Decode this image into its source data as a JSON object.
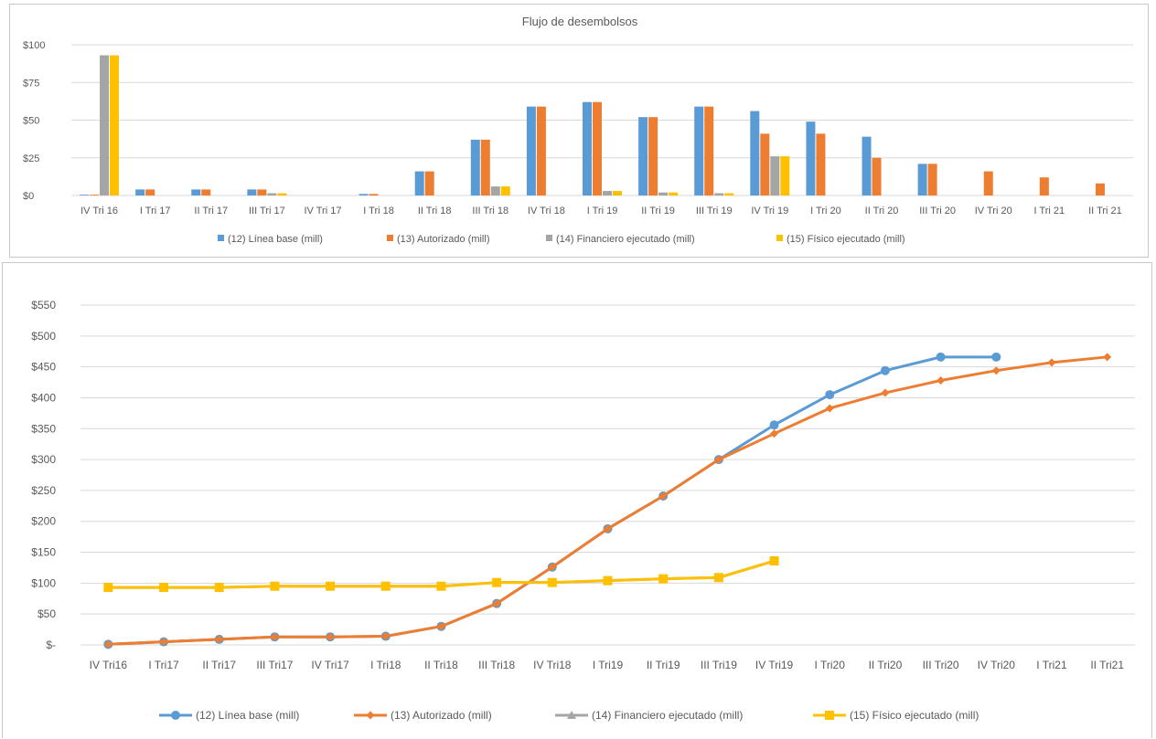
{
  "chart_data": [
    {
      "type": "bar",
      "title": "Flujo de desembolsos",
      "categories": [
        "IV Tri 16",
        "I Tri 17",
        "II Tri 17",
        "III Tri 17",
        "IV Tri 17",
        "I Tri 18",
        "II Tri 18",
        "III Tri 18",
        "IV Tri 18",
        "I Tri 19",
        "II Tri 19",
        "III Tri 19",
        "IV Tri 19",
        "I Tri 20",
        "II Tri 20",
        "III Tri 20",
        "IV Tri 20",
        "I Tri 21",
        "II Tri 21"
      ],
      "yticks": [
        "$0",
        "$25",
        "$50",
        "$75",
        "$100"
      ],
      "ylim": [
        0,
        100
      ],
      "grid": true,
      "legend_position": "bottom",
      "series": [
        {
          "name": "(12) Línea base (mill)",
          "color": "#5b9bd5",
          "values": [
            0.5,
            4,
            4,
            4,
            0,
            1,
            16,
            37,
            59,
            62,
            52,
            59,
            56,
            49,
            39,
            21,
            null,
            null,
            null
          ]
        },
        {
          "name": "(13) Autorizado (mill)",
          "color": "#ed7d31",
          "values": [
            0.5,
            4,
            4,
            4,
            0,
            1,
            16,
            37,
            59,
            62,
            52,
            59,
            41,
            41,
            25,
            21,
            16,
            12,
            8
          ]
        },
        {
          "name": "(14) Financiero ejecutado (mill)",
          "color": "#a5a5a5",
          "values": [
            93,
            0,
            0,
            1.5,
            0,
            0,
            0,
            6,
            0,
            3,
            2,
            1.5,
            26,
            null,
            null,
            null,
            null,
            null,
            null
          ]
        },
        {
          "name": "(15) Físico ejecutado (mill)",
          "color": "#ffc000",
          "values": [
            93,
            0,
            0,
            1.5,
            0,
            0,
            0,
            6,
            0,
            3,
            2,
            1.5,
            26,
            null,
            null,
            null,
            null,
            null,
            null
          ]
        }
      ]
    },
    {
      "type": "line",
      "title": "",
      "categories": [
        "IV Tri16",
        "I Tri17",
        "II Tri17",
        "III Tri17",
        "IV Tri17",
        "I Tri18",
        "II Tri18",
        "III Tri18",
        "IV Tri18",
        "I Tri19",
        "II Tri19",
        "III Tri19",
        "IV Tri19",
        "I Tri20",
        "II Tri20",
        "III Tri20",
        "IV Tri20",
        "I Tri21",
        "II Tri21"
      ],
      "yticks": [
        "$-",
        "$50",
        "$100",
        "$150",
        "$200",
        "$250",
        "$300",
        "$350",
        "$400",
        "$450",
        "$500",
        "$550"
      ],
      "ylim": [
        0,
        550
      ],
      "grid": true,
      "legend_position": "bottom",
      "series": [
        {
          "name": "(12) Línea base (mill)",
          "color": "#5b9bd5",
          "marker": "circle",
          "values": [
            1,
            5,
            9,
            13,
            13,
            14,
            30,
            67,
            126,
            188,
            241,
            300,
            356,
            405,
            444,
            466,
            466,
            null,
            null
          ]
        },
        {
          "name": "(13) Autorizado (mill)",
          "color": "#ed7d31",
          "marker": "diamond",
          "values": [
            1,
            5,
            9,
            13,
            13,
            14,
            30,
            67,
            126,
            188,
            241,
            300,
            342,
            383,
            408,
            428,
            444,
            457,
            466
          ]
        },
        {
          "name": "(14) Financiero ejecutado (mill)",
          "color": "#a5a5a5",
          "marker": "triangle",
          "values": [
            93,
            93,
            93,
            95,
            95,
            95,
            95,
            101,
            101,
            104,
            107,
            109,
            136,
            null,
            null,
            null,
            null,
            null,
            null
          ]
        },
        {
          "name": "(15) Físico ejecutado (mill)",
          "color": "#ffc000",
          "marker": "square",
          "values": [
            93,
            93,
            93,
            95,
            95,
            95,
            95,
            101,
            101,
            104,
            107,
            109,
            136,
            null,
            null,
            null,
            null,
            null,
            null
          ]
        }
      ]
    }
  ]
}
